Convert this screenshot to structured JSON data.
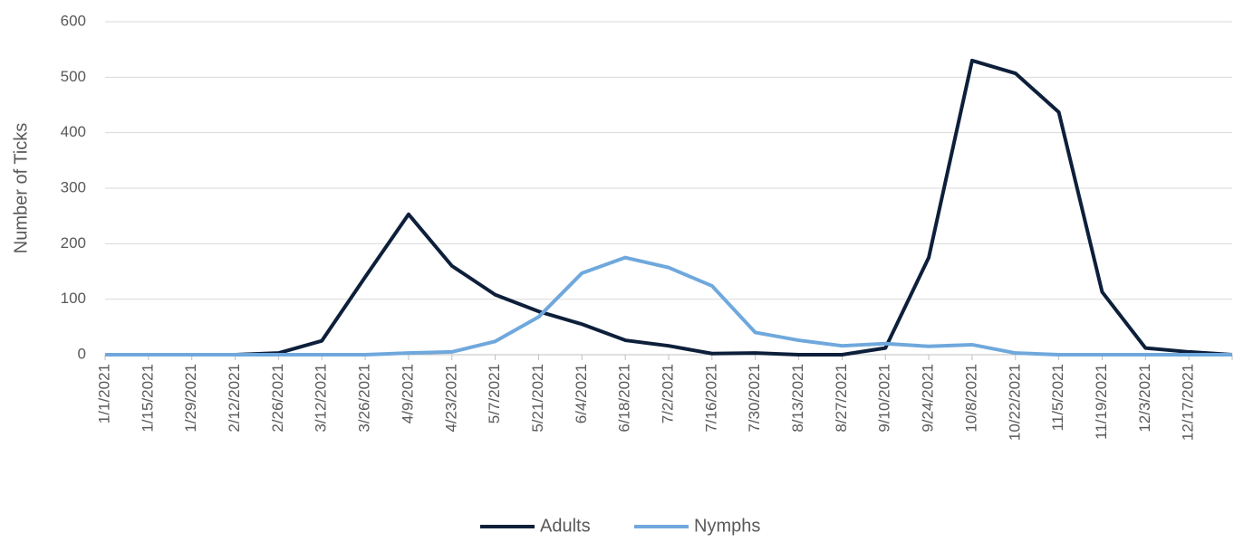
{
  "chart_data": {
    "type": "line",
    "y_label": "Number of Ticks",
    "categories": [
      "1/1/2021",
      "1/15/2021",
      "1/29/2021",
      "2/12/2021",
      "2/26/2021",
      "3/12/2021",
      "3/26/2021",
      "4/9/2021",
      "4/23/2021",
      "5/7/2021",
      "5/21/2021",
      "6/4/2021",
      "6/18/2021",
      "7/2/2021",
      "7/16/2021",
      "7/30/2021",
      "8/13/2021",
      "8/27/2021",
      "9/10/2021",
      "9/24/2021",
      "10/8/2021",
      "10/22/2021",
      "11/5/2021",
      "11/19/2021",
      "12/3/2021",
      "12/17/2021",
      null
    ],
    "series": [
      {
        "name": "Adults",
        "color": "#0d1f3a",
        "values": [
          0,
          0,
          0,
          0,
          3,
          25,
          140,
          253,
          160,
          108,
          78,
          55,
          26,
          16,
          2,
          3,
          0,
          0,
          12,
          175,
          530,
          507,
          437,
          113,
          12,
          5,
          0
        ]
      },
      {
        "name": "Nymphs",
        "color": "#6fa8dc",
        "values": [
          0,
          0,
          0,
          0,
          0,
          0,
          0,
          3,
          5,
          24,
          68,
          147,
          175,
          157,
          124,
          40,
          26,
          16,
          20,
          15,
          18,
          3,
          0,
          0,
          0,
          0,
          0
        ]
      }
    ],
    "ylim": [
      0,
      600
    ],
    "yticks": [
      0,
      100,
      200,
      300,
      400,
      500,
      600
    ],
    "grid": true,
    "legend": "bottom"
  }
}
